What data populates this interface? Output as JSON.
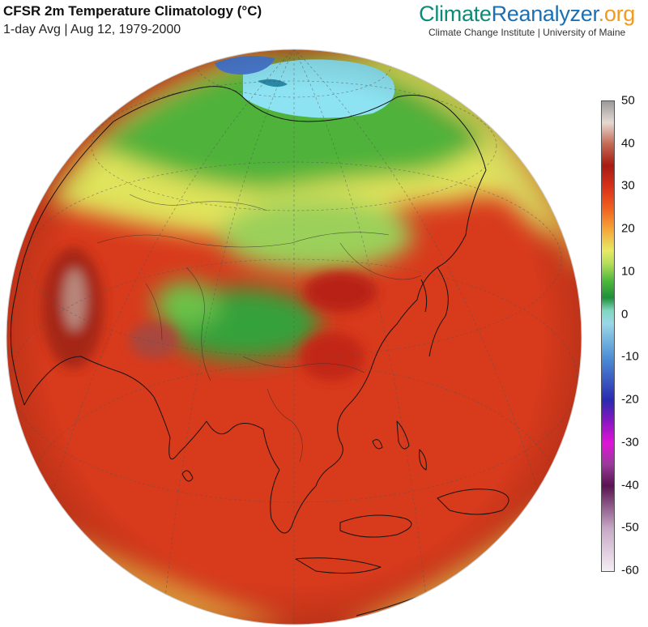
{
  "header": {
    "title": "CFSR 2m Temperature Climatology (°C)",
    "subtitle": "1-day Avg | Aug 12, 1979-2000"
  },
  "brand": {
    "name_part1": "Climate",
    "name_part2": "Reanalyzer",
    "name_part3": ".org",
    "tagline": "Climate Change Institute | University of Maine",
    "colors": {
      "part1": "#0d8a78",
      "part2": "#1c6fb2",
      "part3": "#f39a1d"
    }
  },
  "map": {
    "projection": "orthographic",
    "region": "Asia",
    "graticule": true
  },
  "colorbar": {
    "min": -60,
    "max": 50,
    "ticks": [
      "50",
      "40",
      "30",
      "20",
      "10",
      "0",
      "-10",
      "-20",
      "-30",
      "-40",
      "-50",
      "-60"
    ],
    "stops": [
      {
        "value": 50,
        "color": "#9a9a9a"
      },
      {
        "value": 45,
        "color": "#e6d9d2"
      },
      {
        "value": 40,
        "color": "#c46a55"
      },
      {
        "value": 35,
        "color": "#a61c12"
      },
      {
        "value": 30,
        "color": "#d8301a"
      },
      {
        "value": 25,
        "color": "#f0601e"
      },
      {
        "value": 20,
        "color": "#f6a53a"
      },
      {
        "value": 15,
        "color": "#e6ea64"
      },
      {
        "value": 12,
        "color": "#b5dd5a"
      },
      {
        "value": 8,
        "color": "#4fb93b"
      },
      {
        "value": 4,
        "color": "#1f8f3a"
      },
      {
        "value": 1,
        "color": "#7fd7c0"
      },
      {
        "value": -2,
        "color": "#9ad7e6"
      },
      {
        "value": -10,
        "color": "#4d8fd6"
      },
      {
        "value": -20,
        "color": "#2a2ab0"
      },
      {
        "value": -25,
        "color": "#8a16c0"
      },
      {
        "value": -30,
        "color": "#e014d8"
      },
      {
        "value": -35,
        "color": "#9a3a9a"
      },
      {
        "value": -40,
        "color": "#5a1452"
      },
      {
        "value": -50,
        "color": "#c7a8c6"
      },
      {
        "value": -60,
        "color": "#f4eef4"
      }
    ]
  }
}
